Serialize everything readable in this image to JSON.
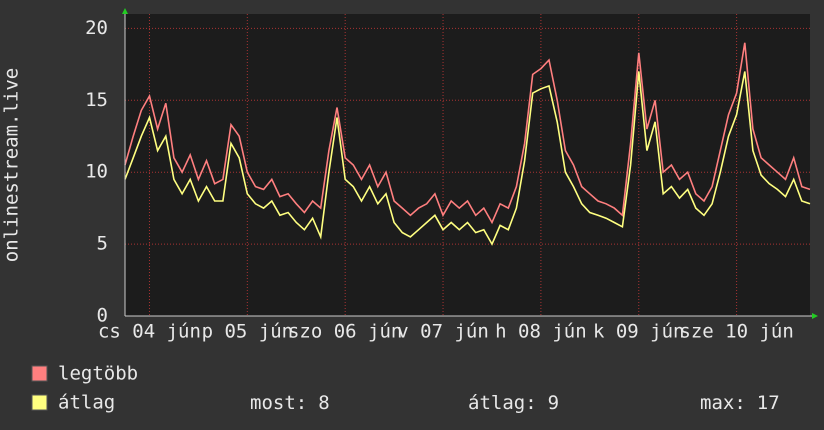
{
  "chart_data": {
    "type": "line",
    "y_label": "onlinestream.live",
    "x": [
      0,
      2,
      4,
      6,
      8,
      10,
      12,
      14,
      16,
      18,
      20,
      22,
      24,
      26,
      28,
      30,
      32,
      34,
      36,
      38,
      40,
      42,
      44,
      46,
      48,
      50,
      52,
      54,
      56,
      58,
      60,
      62,
      64,
      66,
      68,
      70,
      72,
      74,
      76,
      78,
      80,
      82,
      84,
      86,
      88,
      90,
      92,
      94,
      96,
      98,
      100,
      102,
      104,
      106,
      108,
      110,
      112,
      114,
      116,
      118,
      120,
      122,
      124,
      126,
      128,
      130,
      132,
      134,
      136,
      138,
      140,
      142,
      144,
      146,
      148,
      150,
      152,
      154,
      156,
      158,
      160,
      162,
      164,
      166,
      168
    ],
    "series": [
      {
        "name": "legtöbb",
        "color": "#ff7f7f",
        "values": [
          10.5,
          12.5,
          14.3,
          15.3,
          13,
          14.8,
          11,
          10,
          11.2,
          9.5,
          10.8,
          9.2,
          9.5,
          13.3,
          12.5,
          10,
          9,
          8.8,
          9.5,
          8.3,
          8.5,
          7.8,
          7.2,
          8,
          7.5,
          11.5,
          14.5,
          11,
          10.5,
          9.5,
          10.5,
          9,
          10,
          8,
          7.5,
          7,
          7.5,
          7.8,
          8.5,
          7,
          8,
          7.5,
          8,
          7,
          7.5,
          6.5,
          7.8,
          7.5,
          9,
          12,
          16.8,
          17.2,
          17.8,
          15,
          11.5,
          10.5,
          9,
          8.5,
          8,
          7.8,
          7.5,
          7,
          12,
          18.3,
          13,
          15,
          10,
          10.5,
          9.5,
          10,
          8.5,
          8,
          9,
          11.5,
          14,
          15.5,
          19,
          13,
          11,
          10.5,
          10,
          9.5,
          11,
          9,
          8.8
        ]
      },
      {
        "name": "átlag",
        "color": "#ffff80",
        "values": [
          9.5,
          11,
          12.5,
          13.8,
          11.5,
          12.5,
          9.5,
          8.5,
          9.5,
          8,
          9,
          8,
          8,
          12,
          11,
          8.5,
          7.8,
          7.5,
          8,
          7,
          7.2,
          6.5,
          6,
          6.8,
          5.5,
          10,
          13.8,
          9.5,
          9,
          8,
          9,
          7.8,
          8.5,
          6.5,
          5.8,
          5.5,
          6,
          6.5,
          7,
          6,
          6.5,
          6,
          6.5,
          5.8,
          6,
          5,
          6.3,
          6,
          7.5,
          10.8,
          15.5,
          15.8,
          16,
          13.5,
          10,
          9,
          7.8,
          7.2,
          7,
          6.8,
          6.5,
          6.2,
          10.5,
          17,
          11.5,
          13.5,
          8.5,
          9,
          8.2,
          8.8,
          7.5,
          7,
          7.8,
          10,
          12.5,
          14,
          17,
          11.5,
          9.8,
          9.2,
          8.8,
          8.3,
          9.5,
          8,
          7.8
        ]
      }
    ],
    "xlim": [
      0,
      168
    ],
    "xticks": [
      {
        "value": 6,
        "label": "cs 04 jún"
      },
      {
        "value": 30,
        "label": "p 05 jún"
      },
      {
        "value": 54,
        "label": "szo 06 jún"
      },
      {
        "value": 78,
        "label": "v 07 jún"
      },
      {
        "value": 102,
        "label": "h 08 jún"
      },
      {
        "value": 126,
        "label": "k 09 jún"
      },
      {
        "value": 150,
        "label": "sze 10 jún"
      }
    ],
    "ylim": [
      0,
      21
    ],
    "yticks": [
      0,
      5,
      10,
      15,
      20
    ],
    "grid": true,
    "stats": [
      {
        "label": "most:",
        "value": 8
      },
      {
        "label": "átlag:",
        "value": 9
      },
      {
        "label": "max:",
        "value": 17
      }
    ]
  }
}
